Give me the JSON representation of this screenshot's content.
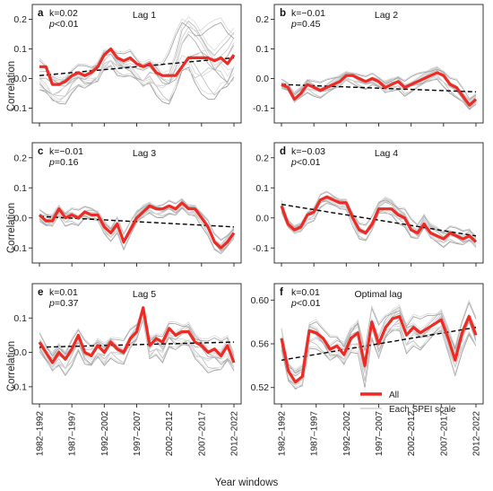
{
  "figure": {
    "xlabel": "Year windows",
    "ylabel": "Correlation",
    "x_ticks": [
      "1982–1992",
      "1987–1997",
      "1992–2002",
      "1997–2007",
      "2002–2012",
      "2007–2017",
      "2012–2022"
    ],
    "legend": {
      "all": "All",
      "each": "Each SPEI scale"
    },
    "colors": {
      "all": "#ee2a24",
      "each": "#a9a9a9",
      "trend": "#000000"
    }
  },
  "chart_data": [
    {
      "type": "line",
      "panel": "a",
      "title": "Lag 1",
      "k_label": "k=0.02",
      "p_label": "p<0.01",
      "ylim": [
        -0.15,
        0.25
      ],
      "yticks": [
        "-0.1",
        "0.0",
        "0.1",
        "0.2"
      ],
      "ytick_values": [
        -0.1,
        0.0,
        0.1,
        0.2
      ],
      "x_range": [
        1,
        31
      ],
      "series": [
        {
          "values": [
            0.04,
            0.04,
            -0.02,
            -0.02,
            -0.01,
            0.01,
            0.02,
            0.01,
            0.02,
            0.04,
            0.08,
            0.1,
            0.07,
            0.06,
            0.07,
            0.05,
            0.04,
            0.05,
            0.02,
            0.01,
            0.01,
            0.01,
            0.04,
            0.07,
            0.07,
            0.07,
            0.07,
            0.06,
            0.07,
            0.05,
            0.08
          ]
        },
        {
          "name": "trend",
          "values_start_end": [
            0.01,
            0.07
          ]
        }
      ],
      "band": {
        "upper": [
          0.07,
          0.06,
          0.03,
          0.02,
          0.03,
          0.04,
          0.05,
          0.05,
          0.05,
          0.07,
          0.11,
          0.12,
          0.1,
          0.09,
          0.1,
          0.08,
          0.07,
          0.08,
          0.08,
          0.07,
          0.1,
          0.16,
          0.23,
          0.24,
          0.23,
          0.22,
          0.21,
          0.2,
          0.21,
          0.2,
          0.2
        ],
        "lower": [
          -0.06,
          -0.08,
          -0.1,
          -0.1,
          -0.09,
          -0.05,
          -0.03,
          -0.05,
          -0.04,
          -0.03,
          0.02,
          0.04,
          0.01,
          0.0,
          -0.01,
          -0.03,
          -0.05,
          -0.03,
          -0.06,
          -0.08,
          -0.1,
          -0.08,
          -0.04,
          -0.02,
          -0.05,
          -0.06,
          -0.07,
          -0.09,
          -0.09,
          -0.1,
          -0.05
        ]
      }
    },
    {
      "type": "line",
      "panel": "b",
      "title": "Lag 2",
      "k_label": "k=−0.01",
      "p_label": "p=0.45",
      "ylim": [
        -0.15,
        0.25
      ],
      "yticks": [
        "-0.1",
        "0.0",
        "0.1",
        "0.2"
      ],
      "ytick_values": [
        -0.1,
        0.0,
        0.1,
        0.2
      ],
      "x_range": [
        1,
        31
      ],
      "series": [
        {
          "values": [
            -0.02,
            -0.03,
            -0.07,
            -0.05,
            -0.02,
            -0.03,
            -0.04,
            -0.03,
            -0.02,
            -0.01,
            0.01,
            0.01,
            0.0,
            -0.01,
            0.0,
            -0.01,
            -0.03,
            -0.02,
            -0.01,
            -0.03,
            -0.02,
            -0.01,
            0.0,
            0.01,
            0.02,
            0.01,
            -0.02,
            -0.03,
            -0.06,
            -0.09,
            -0.07
          ]
        },
        {
          "name": "trend",
          "values_start_end": [
            -0.02,
            -0.045
          ]
        }
      ],
      "band": {
        "upper": [
          0.0,
          -0.01,
          -0.04,
          -0.02,
          0.01,
          0.0,
          -0.01,
          0.0,
          0.01,
          0.02,
          0.03,
          0.03,
          0.02,
          0.01,
          0.02,
          0.01,
          0.0,
          0.01,
          0.02,
          0.0,
          0.01,
          0.02,
          0.03,
          0.04,
          0.05,
          0.04,
          0.01,
          0.0,
          -0.03,
          -0.06,
          -0.04
        ],
        "lower": [
          -0.04,
          -0.05,
          -0.09,
          -0.07,
          -0.05,
          -0.06,
          -0.07,
          -0.06,
          -0.05,
          -0.04,
          -0.01,
          -0.02,
          -0.03,
          -0.04,
          -0.03,
          -0.04,
          -0.06,
          -0.05,
          -0.04,
          -0.06,
          -0.05,
          -0.04,
          -0.03,
          -0.02,
          -0.01,
          -0.03,
          -0.05,
          -0.07,
          -0.09,
          -0.12,
          -0.1
        ]
      }
    },
    {
      "type": "line",
      "panel": "c",
      "title": "Lag 3",
      "k_label": "k=−0.01",
      "p_label": "p=0.16",
      "ylim": [
        -0.15,
        0.25
      ],
      "yticks": [
        "-0.1",
        "0.0",
        "0.1",
        "0.2"
      ],
      "ytick_values": [
        -0.1,
        0.0,
        0.1,
        0.2
      ],
      "x_range": [
        1,
        31
      ],
      "series": [
        {
          "values": [
            0.01,
            -0.01,
            -0.01,
            0.03,
            0.0,
            0.01,
            0.0,
            0.02,
            0.01,
            0.01,
            -0.03,
            -0.05,
            -0.02,
            -0.08,
            -0.04,
            0.0,
            0.02,
            0.04,
            0.03,
            0.03,
            0.04,
            0.03,
            0.05,
            0.03,
            0.03,
            0.0,
            -0.03,
            -0.08,
            -0.1,
            -0.08,
            -0.05
          ]
        },
        {
          "name": "trend",
          "values_start_end": [
            0.005,
            -0.03
          ]
        }
      ],
      "band": {
        "upper": [
          0.03,
          0.02,
          0.02,
          0.05,
          0.03,
          0.04,
          0.03,
          0.04,
          0.04,
          0.03,
          0.0,
          -0.02,
          0.01,
          -0.05,
          -0.01,
          0.03,
          0.05,
          0.06,
          0.05,
          0.05,
          0.06,
          0.05,
          0.07,
          0.05,
          0.05,
          0.03,
          0.0,
          -0.05,
          -0.07,
          -0.05,
          -0.02
        ],
        "lower": [
          -0.02,
          -0.04,
          -0.04,
          0.0,
          -0.03,
          -0.02,
          -0.03,
          -0.01,
          -0.02,
          -0.02,
          -0.06,
          -0.08,
          -0.05,
          -0.11,
          -0.07,
          -0.03,
          -0.01,
          0.01,
          0.0,
          0.0,
          0.01,
          0.0,
          0.02,
          0.0,
          0.0,
          -0.03,
          -0.06,
          -0.11,
          -0.13,
          -0.11,
          -0.08
        ]
      }
    },
    {
      "type": "line",
      "panel": "d",
      "title": "Lag 4",
      "k_label": "k=−0.03",
      "p_label": "p<0.01",
      "ylim": [
        -0.15,
        0.25
      ],
      "yticks": [
        "-0.1",
        "0.0",
        "0.1",
        "0.2"
      ],
      "ytick_values": [
        -0.1,
        0.0,
        0.1,
        0.2
      ],
      "x_range": [
        1,
        31
      ],
      "series": [
        {
          "values": [
            0.04,
            -0.02,
            -0.04,
            -0.03,
            0.01,
            0.02,
            0.06,
            0.07,
            0.06,
            0.05,
            0.05,
            0.0,
            -0.04,
            -0.05,
            -0.02,
            0.03,
            0.03,
            0.03,
            0.01,
            0.0,
            -0.04,
            -0.05,
            -0.02,
            -0.05,
            -0.06,
            -0.07,
            -0.05,
            -0.06,
            -0.07,
            -0.06,
            -0.08
          ]
        },
        {
          "name": "trend",
          "values_start_end": [
            0.045,
            -0.06
          ]
        }
      ],
      "band": {
        "upper": [
          0.06,
          0.0,
          -0.02,
          -0.01,
          0.03,
          0.04,
          0.08,
          0.09,
          0.08,
          0.07,
          0.07,
          0.03,
          -0.01,
          -0.02,
          0.01,
          0.06,
          0.08,
          0.07,
          0.05,
          0.04,
          0.0,
          -0.02,
          0.02,
          -0.01,
          -0.02,
          -0.03,
          -0.02,
          -0.03,
          -0.04,
          -0.03,
          -0.05
        ],
        "lower": [
          0.01,
          -0.04,
          -0.06,
          -0.05,
          -0.02,
          -0.01,
          0.03,
          0.04,
          0.03,
          0.02,
          0.02,
          -0.03,
          -0.07,
          -0.08,
          -0.05,
          0.0,
          0.0,
          0.0,
          -0.02,
          -0.03,
          -0.07,
          -0.08,
          -0.05,
          -0.08,
          -0.09,
          -0.1,
          -0.08,
          -0.09,
          -0.1,
          -0.09,
          -0.11
        ]
      }
    },
    {
      "type": "line",
      "panel": "e",
      "title": "Lag 5",
      "k_label": "k=0.01",
      "p_label": "p=0.37",
      "ylim": [
        -0.15,
        0.2
      ],
      "yticks": [
        "-0.1",
        "0.0",
        "0.1"
      ],
      "ytick_values": [
        -0.1,
        0.0,
        0.1
      ],
      "x_range": [
        1,
        31
      ],
      "series": [
        {
          "values": [
            0.03,
            0.0,
            -0.03,
            0.0,
            -0.02,
            0.01,
            0.05,
            0.0,
            -0.01,
            0.02,
            0.0,
            0.03,
            0.01,
            0.0,
            0.04,
            0.06,
            0.13,
            0.02,
            0.04,
            0.03,
            0.07,
            0.05,
            0.06,
            0.06,
            0.03,
            0.02,
            0.0,
            0.01,
            -0.01,
            0.02,
            -0.03
          ]
        },
        {
          "name": "trend",
          "values_start_end": [
            0.015,
            0.03
          ]
        }
      ],
      "band": {
        "upper": [
          0.06,
          0.03,
          0.01,
          0.04,
          0.02,
          0.05,
          0.07,
          0.04,
          0.03,
          0.05,
          0.04,
          0.06,
          0.05,
          0.04,
          0.07,
          0.09,
          0.14,
          0.06,
          0.07,
          0.06,
          0.09,
          0.09,
          0.09,
          0.1,
          0.07,
          0.06,
          0.05,
          0.05,
          0.04,
          0.06,
          0.01
        ],
        "lower": [
          -0.01,
          -0.04,
          -0.07,
          -0.05,
          -0.07,
          -0.04,
          0.0,
          -0.05,
          -0.06,
          -0.03,
          -0.05,
          -0.02,
          -0.03,
          -0.04,
          0.0,
          0.02,
          0.08,
          -0.03,
          -0.01,
          -0.03,
          0.01,
          -0.01,
          0.0,
          0.0,
          -0.03,
          -0.04,
          -0.06,
          -0.06,
          -0.07,
          -0.05,
          -0.07
        ]
      }
    },
    {
      "type": "line",
      "panel": "f",
      "title": "Optimal lag",
      "k_label": "k=0.01",
      "p_label": "p<0.01",
      "ylim": [
        0.505,
        0.615
      ],
      "yticks": [
        "0.52",
        "0.56",
        "0.60"
      ],
      "ytick_values": [
        0.52,
        0.56,
        0.6
      ],
      "x_range": [
        1,
        31
      ],
      "series": [
        {
          "values": [
            0.565,
            0.535,
            0.525,
            0.53,
            0.572,
            0.57,
            0.565,
            0.555,
            0.558,
            0.55,
            0.565,
            0.57,
            0.54,
            0.58,
            0.56,
            0.575,
            0.583,
            0.585,
            0.568,
            0.575,
            0.57,
            0.574,
            0.578,
            0.582,
            0.565,
            0.545,
            0.57,
            0.585,
            0.568
          ]
        },
        {
          "name": "trend",
          "values_start_end": [
            0.545,
            0.575
          ]
        }
      ],
      "band": {
        "upper": [
          0.575,
          0.545,
          0.54,
          0.545,
          0.585,
          0.585,
          0.575,
          0.568,
          0.57,
          0.565,
          0.58,
          0.59,
          0.56,
          0.595,
          0.58,
          0.59,
          0.595,
          0.6,
          0.585,
          0.59,
          0.585,
          0.588,
          0.59,
          0.595,
          0.58,
          0.565,
          0.585,
          0.6,
          0.585
        ],
        "lower": [
          0.55,
          0.52,
          0.513,
          0.518,
          0.555,
          0.555,
          0.55,
          0.54,
          0.542,
          0.535,
          0.548,
          0.55,
          0.52,
          0.562,
          0.54,
          0.558,
          0.566,
          0.568,
          0.55,
          0.558,
          0.552,
          0.556,
          0.562,
          0.566,
          0.548,
          0.53,
          0.552,
          0.566,
          0.552
        ]
      }
    }
  ]
}
